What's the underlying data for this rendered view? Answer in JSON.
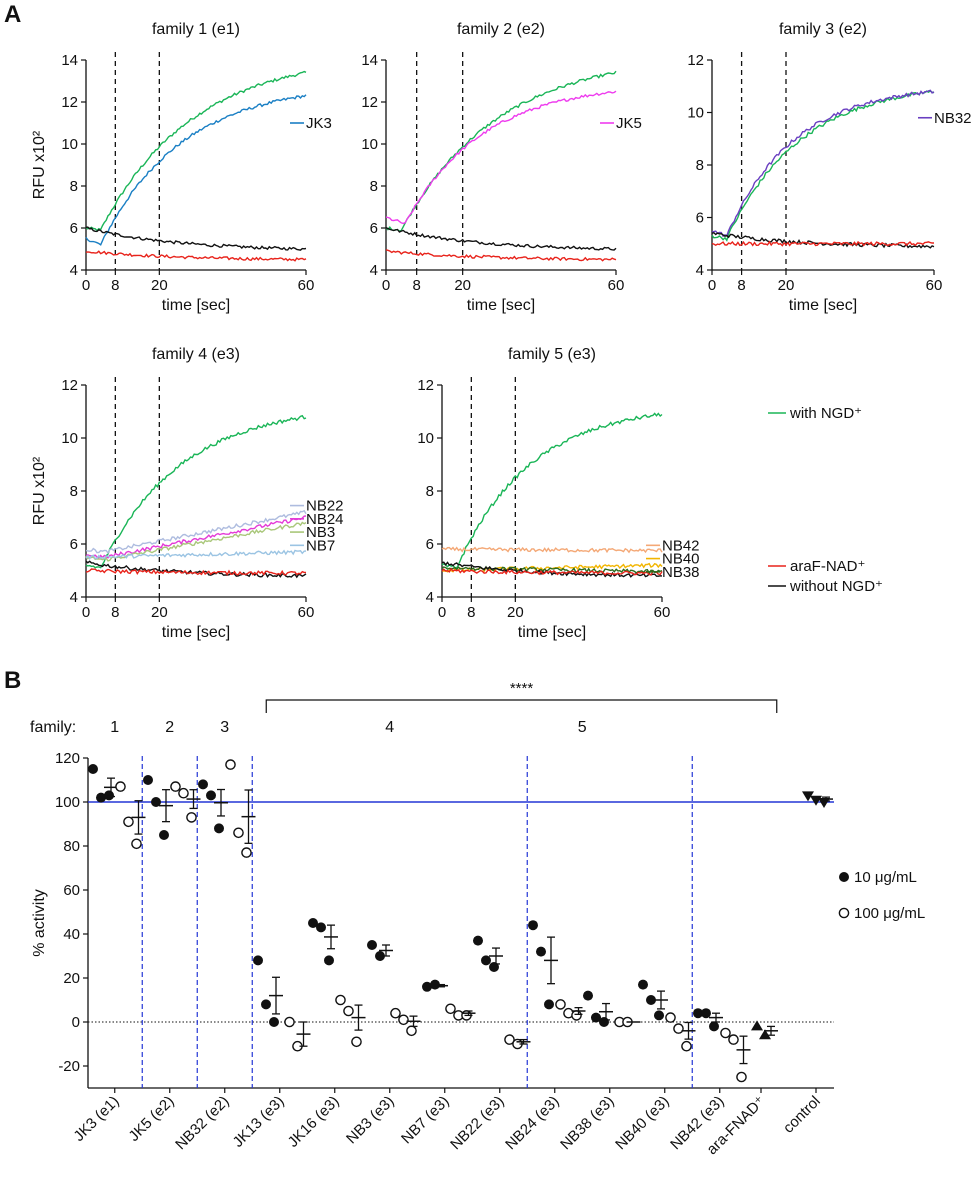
{
  "panel_labels": {
    "a": "A",
    "b": "B"
  },
  "legend_a": {
    "with": "with NGD⁺",
    "araf": "araF-NAD⁺",
    "without": "without NGD⁺"
  },
  "colors": {
    "with": "#1ab557",
    "araf": "#e8231b",
    "without": "#111111",
    "JK3": "#1a7fc4",
    "JK5": "#ee3cee",
    "NB32": "#6a3fc1",
    "NB22": "#aebcdf",
    "NB24": "#e43ad7",
    "NB3": "#a9c77a",
    "NB7": "#9bc4e3",
    "NB42": "#f4a876",
    "NB40": "#f2b500",
    "NB38": "#2c6b1e",
    "ref": "#2436d6"
  },
  "chart_data": [
    {
      "type": "line",
      "title": "family 1 (e1)",
      "xlabel": "time [sec]",
      "ylabel": "RFU x10²",
      "xlim": [
        0,
        60
      ],
      "ylim": [
        4,
        14
      ],
      "yticks": [
        "4",
        "6",
        "8",
        "10",
        "12",
        "14"
      ],
      "xticks": [
        "0",
        "8",
        "20",
        "60"
      ],
      "vlines": [
        8,
        20
      ],
      "series": [
        {
          "name": "with NGD+",
          "key": "with",
          "start": 6.0,
          "dip": 5.9,
          "dip_t": 4,
          "end": 13.4,
          "tau": 25
        },
        {
          "name": "JK3",
          "key": "JK3",
          "start": 5.5,
          "dip": 5.2,
          "dip_t": 4,
          "end": 12.3,
          "tau": 22
        },
        {
          "name": "without NGD+",
          "key": "without",
          "start": 6.0,
          "dip": 6.0,
          "dip_t": 0,
          "end": 5.0,
          "tau": -1
        },
        {
          "name": "araF-NAD+",
          "key": "araf",
          "start": 4.9,
          "dip": 4.9,
          "dip_t": 0,
          "end": 4.5,
          "tau": -1
        }
      ],
      "labels": [
        {
          "text": "JK3",
          "key": "JK3",
          "y": 11.0
        }
      ]
    },
    {
      "type": "line",
      "title": "family 2 (e2)",
      "xlabel": "time [sec]",
      "ylabel": "",
      "xlim": [
        0,
        60
      ],
      "ylim": [
        4,
        14
      ],
      "yticks": [
        "4",
        "6",
        "8",
        "10",
        "12",
        "14"
      ],
      "xticks": [
        "0",
        "8",
        "20",
        "60"
      ],
      "vlines": [
        8,
        20
      ],
      "series": [
        {
          "name": "with NGD+",
          "key": "with",
          "start": 6.0,
          "dip": 5.9,
          "dip_t": 4,
          "end": 13.4,
          "tau": 25
        },
        {
          "name": "JK5",
          "key": "JK5",
          "start": 6.5,
          "dip": 6.2,
          "dip_t": 5,
          "end": 12.5,
          "tau": 20
        },
        {
          "name": "without NGD+",
          "key": "without",
          "start": 6.0,
          "dip": 6.0,
          "dip_t": 0,
          "end": 5.0,
          "tau": -1
        },
        {
          "name": "araF-NAD+",
          "key": "araf",
          "start": 4.9,
          "dip": 4.9,
          "dip_t": 0,
          "end": 4.5,
          "tau": -1
        }
      ],
      "labels": [
        {
          "text": "JK5",
          "key": "JK5",
          "y": 11.0
        }
      ]
    },
    {
      "type": "line",
      "title": "family 3 (e2)",
      "xlabel": "time [sec]",
      "ylabel": "",
      "xlim": [
        0,
        60
      ],
      "ylim": [
        4,
        12
      ],
      "yticks": [
        "4",
        "6",
        "8",
        "10",
        "12"
      ],
      "xticks": [
        "0",
        "8",
        "20",
        "60"
      ],
      "vlines": [
        8,
        20
      ],
      "series": [
        {
          "name": "with NGD+",
          "key": "with",
          "start": 5.3,
          "dip": 5.2,
          "dip_t": 4,
          "end": 10.8,
          "tau": 20
        },
        {
          "name": "NB32",
          "key": "NB32",
          "start": 5.5,
          "dip": 5.3,
          "dip_t": 4,
          "end": 10.8,
          "tau": 18
        },
        {
          "name": "without NGD+",
          "key": "without",
          "start": 5.4,
          "dip": 5.4,
          "dip_t": 0,
          "end": 4.9,
          "tau": -1
        },
        {
          "name": "araF-NAD+",
          "key": "araf",
          "start": 5.0,
          "dip": 5.0,
          "dip_t": 0,
          "end": 5.0,
          "tau": -1
        }
      ],
      "labels": [
        {
          "text": "NB32",
          "key": "NB32",
          "y": 9.8
        }
      ]
    },
    {
      "type": "line",
      "title": "family 4 (e3)",
      "xlabel": "time [sec]",
      "ylabel": "RFU x10²",
      "xlim": [
        0,
        60
      ],
      "ylim": [
        4,
        12
      ],
      "yticks": [
        "4",
        "6",
        "8",
        "10",
        "12"
      ],
      "xticks": [
        "0",
        "8",
        "20",
        "60"
      ],
      "vlines": [
        8,
        20
      ],
      "series": [
        {
          "name": "with NGD+",
          "key": "with",
          "start": 5.2,
          "dip": 5.1,
          "dip_t": 4,
          "end": 10.8,
          "tau": 22
        },
        {
          "name": "NB22",
          "key": "NB22",
          "start": 5.8,
          "dip": 5.7,
          "dip_t": 5,
          "end": 7.2,
          "tau": 0
        },
        {
          "name": "NB24",
          "key": "NB24",
          "start": 5.6,
          "dip": 5.5,
          "dip_t": 5,
          "end": 7.0,
          "tau": 0
        },
        {
          "name": "NB3",
          "key": "NB3",
          "start": 5.5,
          "dip": 5.4,
          "dip_t": 5,
          "end": 6.8,
          "tau": 0
        },
        {
          "name": "NB7",
          "key": "NB7",
          "start": 5.5,
          "dip": 5.5,
          "dip_t": 0,
          "end": 5.7,
          "tau": 0
        },
        {
          "name": "without NGD+",
          "key": "without",
          "start": 5.3,
          "dip": 5.3,
          "dip_t": 0,
          "end": 4.8,
          "tau": -1
        },
        {
          "name": "araF-NAD+",
          "key": "araf",
          "start": 5.0,
          "dip": 5.0,
          "dip_t": 0,
          "end": 4.9,
          "tau": -1
        }
      ],
      "labels": [
        {
          "text": "NB22",
          "key": "NB22",
          "y": 7.45
        },
        {
          "text": "NB24",
          "key": "NB24",
          "y": 6.95
        },
        {
          "text": "NB3",
          "key": "NB3",
          "y": 6.45
        },
        {
          "text": "NB7",
          "key": "NB7",
          "y": 5.95
        }
      ]
    },
    {
      "type": "line",
      "title": "family 5 (e3)",
      "xlabel": "time [sec]",
      "ylabel": "",
      "xlim": [
        0,
        60
      ],
      "ylim": [
        4,
        12
      ],
      "yticks": [
        "4",
        "6",
        "8",
        "10",
        "12"
      ],
      "xticks": [
        "0",
        "8",
        "20",
        "60"
      ],
      "vlines": [
        8,
        20
      ],
      "series": [
        {
          "name": "with NGD+",
          "key": "with",
          "start": 5.2,
          "dip": 5.1,
          "dip_t": 4,
          "end": 10.9,
          "tau": 20
        },
        {
          "name": "NB42",
          "key": "NB42",
          "start": 5.8,
          "dip": 5.8,
          "dip_t": 0,
          "end": 5.75,
          "tau": 0
        },
        {
          "name": "NB40",
          "key": "NB40",
          "start": 5.0,
          "dip": 5.0,
          "dip_t": 0,
          "end": 5.2,
          "tau": 0
        },
        {
          "name": "NB38",
          "key": "NB38",
          "start": 5.1,
          "dip": 5.1,
          "dip_t": 0,
          "end": 4.95,
          "tau": 0
        },
        {
          "name": "without NGD+",
          "key": "without",
          "start": 5.3,
          "dip": 5.3,
          "dip_t": 0,
          "end": 4.8,
          "tau": -1
        },
        {
          "name": "araF-NAD+",
          "key": "araf",
          "start": 5.0,
          "dip": 5.0,
          "dip_t": 0,
          "end": 4.9,
          "tau": -1
        }
      ],
      "labels": [
        {
          "text": "NB42",
          "key": "NB42",
          "y": 5.95
        },
        {
          "text": "NB40",
          "key": "NB40",
          "y": 5.45
        },
        {
          "text": "NB38",
          "key": "NB38",
          "y": 4.95
        }
      ]
    },
    {
      "type": "scatter",
      "title": "",
      "ylabel": "% activity",
      "ylim": [
        -30,
        120
      ],
      "yticks": [
        -20,
        0,
        20,
        40,
        60,
        80,
        100,
        120
      ],
      "reference_line": 100,
      "family_label": "family:",
      "families": [
        {
          "label": "1",
          "center": 0.5
        },
        {
          "label": "2",
          "center": 2.5
        },
        {
          "label": "3",
          "center": 4.5
        },
        {
          "label": "4",
          "center": 10.5
        },
        {
          "label": "5",
          "center": 17.5
        }
      ],
      "separators": [
        1.5,
        3.5,
        5.5,
        15.5,
        21.5
      ],
      "significance": {
        "text": "****",
        "from": 5.5,
        "to": 22.5
      },
      "categories": [
        "JK3 (e1)",
        "JK5 (e2)",
        "NB32 (e2)",
        "JK13 (e3)",
        "JK16 (e3)",
        "NB3 (e3)",
        "NB7 (e3)",
        "NB22 (e3)",
        "NB24 (e3)",
        "NB38 (e3)",
        "NB40 (e3)",
        "NB42 (e3)",
        "ara-FNAD⁺",
        "control"
      ],
      "series": [
        {
          "name": "10 μg/mL",
          "marker": "filled-circle",
          "groups": [
            {
              "pos": 0,
              "values": [
                115,
                102,
                103
              ]
            },
            {
              "pos": 2,
              "values": [
                110,
                100,
                85
              ]
            },
            {
              "pos": 4,
              "values": [
                108,
                103,
                88
              ]
            },
            {
              "pos": 6,
              "values": [
                28,
                8,
                0
              ]
            },
            {
              "pos": 8,
              "values": [
                45,
                43,
                28
              ]
            },
            {
              "pos": 10,
              "values": [
                35,
                30
              ]
            },
            {
              "pos": 12,
              "values": [
                16,
                17
              ]
            },
            {
              "pos": 14,
              "values": [
                37,
                28,
                25
              ]
            },
            {
              "pos": 16,
              "values": [
                44,
                32,
                8
              ]
            },
            {
              "pos": 18,
              "values": [
                12,
                2,
                0
              ]
            },
            {
              "pos": 20,
              "values": [
                17,
                10,
                3
              ]
            },
            {
              "pos": 22,
              "values": [
                4,
                4,
                -2
              ]
            }
          ]
        },
        {
          "name": "100 μg/mL",
          "marker": "open-circle",
          "groups": [
            {
              "pos": 1,
              "values": [
                107,
                91,
                81
              ]
            },
            {
              "pos": 3,
              "values": [
                107,
                104,
                93
              ]
            },
            {
              "pos": 5,
              "values": [
                117,
                86,
                77
              ]
            },
            {
              "pos": 7,
              "values": [
                0,
                -11
              ]
            },
            {
              "pos": 9,
              "values": [
                10,
                5,
                -9
              ]
            },
            {
              "pos": 11,
              "values": [
                4,
                1,
                -4
              ]
            },
            {
              "pos": 13,
              "values": [
                6,
                3,
                3
              ]
            },
            {
              "pos": 15,
              "values": [
                -8,
                -10
              ]
            },
            {
              "pos": 17,
              "values": [
                8,
                4,
                3
              ]
            },
            {
              "pos": 19,
              "values": [
                0,
                0
              ]
            },
            {
              "pos": 21,
              "values": [
                2,
                -3,
                -11
              ]
            },
            {
              "pos": 23,
              "values": [
                -5,
                -8,
                -25
              ]
            }
          ]
        },
        {
          "name": "ara-FNAD+",
          "marker": "filled-triangle",
          "groups": [
            {
              "pos": 24,
              "values": [
                -2,
                -6
              ]
            }
          ]
        },
        {
          "name": "control",
          "marker": "filled-inverted-triangle",
          "groups": [
            {
              "pos": 26,
              "values": [
                103,
                101,
                100
              ]
            }
          ]
        }
      ],
      "category_positions": [
        0.5,
        2.5,
        4.5,
        6.5,
        8.5,
        10.5,
        12.5,
        14.5,
        16.5,
        18.5,
        20.5,
        22.5,
        24,
        26
      ],
      "legend": [
        "10 μg/mL",
        "100 μg/mL"
      ]
    }
  ]
}
